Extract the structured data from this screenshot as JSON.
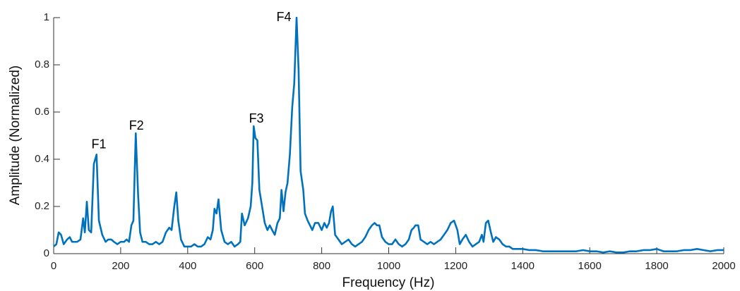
{
  "chart_data": {
    "type": "line",
    "xlabel": "Frequency (Hz)",
    "ylabel": "Amplitude (Normalized)",
    "x": [
      0,
      8,
      15,
      22,
      30,
      40,
      48,
      55,
      70,
      80,
      88,
      93,
      99,
      105,
      112,
      120,
      128,
      135,
      145,
      155,
      163,
      172,
      180,
      190,
      200,
      210,
      218,
      225,
      232,
      238,
      245,
      252,
      258,
      265,
      275,
      285,
      295,
      305,
      315,
      325,
      335,
      345,
      352,
      360,
      366,
      372,
      380,
      390,
      400,
      410,
      420,
      430,
      440,
      450,
      460,
      468,
      475,
      480,
      486,
      492,
      500,
      510,
      520,
      530,
      540,
      550,
      557,
      562,
      570,
      580,
      588,
      593,
      597,
      602,
      608,
      614,
      622,
      630,
      638,
      645,
      652,
      660,
      668,
      675,
      680,
      686,
      692,
      698,
      705,
      712,
      718,
      725,
      731,
      737,
      745,
      750,
      758,
      765,
      772,
      780,
      790,
      800,
      808,
      815,
      822,
      828,
      833,
      840,
      850,
      860,
      870,
      880,
      890,
      900,
      910,
      920,
      930,
      940,
      950,
      958,
      965,
      972,
      980,
      990,
      1000,
      1010,
      1020,
      1030,
      1040,
      1050,
      1060,
      1068,
      1075,
      1080,
      1088,
      1095,
      1105,
      1115,
      1125,
      1135,
      1145,
      1155,
      1165,
      1175,
      1185,
      1195,
      1205,
      1212,
      1220,
      1230,
      1240,
      1250,
      1260,
      1270,
      1278,
      1283,
      1290,
      1297,
      1305,
      1312,
      1320,
      1330,
      1340,
      1350,
      1360,
      1370,
      1380,
      1390,
      1400,
      1420,
      1440,
      1460,
      1480,
      1500,
      1520,
      1540,
      1560,
      1580,
      1600,
      1620,
      1640,
      1660,
      1680,
      1700,
      1720,
      1740,
      1760,
      1780,
      1800,
      1820,
      1840,
      1860,
      1880,
      1900,
      1920,
      1940,
      1960,
      1980,
      2000
    ],
    "values": [
      0.03,
      0.04,
      0.09,
      0.08,
      0.04,
      0.06,
      0.07,
      0.05,
      0.05,
      0.06,
      0.15,
      0.09,
      0.22,
      0.1,
      0.09,
      0.38,
      0.42,
      0.14,
      0.08,
      0.05,
      0.06,
      0.06,
      0.05,
      0.04,
      0.05,
      0.05,
      0.06,
      0.05,
      0.12,
      0.14,
      0.51,
      0.25,
      0.09,
      0.05,
      0.05,
      0.04,
      0.04,
      0.05,
      0.04,
      0.05,
      0.09,
      0.11,
      0.1,
      0.2,
      0.26,
      0.14,
      0.06,
      0.03,
      0.03,
      0.03,
      0.04,
      0.03,
      0.03,
      0.04,
      0.07,
      0.06,
      0.1,
      0.19,
      0.17,
      0.23,
      0.1,
      0.05,
      0.04,
      0.05,
      0.03,
      0.04,
      0.05,
      0.17,
      0.12,
      0.15,
      0.2,
      0.3,
      0.54,
      0.49,
      0.48,
      0.27,
      0.2,
      0.13,
      0.1,
      0.12,
      0.1,
      0.08,
      0.13,
      0.15,
      0.27,
      0.18,
      0.26,
      0.3,
      0.42,
      0.62,
      0.72,
      1.0,
      0.78,
      0.35,
      0.27,
      0.17,
      0.14,
      0.12,
      0.1,
      0.13,
      0.13,
      0.1,
      0.13,
      0.11,
      0.13,
      0.18,
      0.2,
      0.08,
      0.06,
      0.04,
      0.05,
      0.06,
      0.04,
      0.03,
      0.04,
      0.05,
      0.07,
      0.1,
      0.12,
      0.13,
      0.12,
      0.12,
      0.07,
      0.05,
      0.04,
      0.04,
      0.06,
      0.04,
      0.03,
      0.04,
      0.06,
      0.1,
      0.11,
      0.12,
      0.12,
      0.06,
      0.05,
      0.04,
      0.05,
      0.04,
      0.05,
      0.06,
      0.08,
      0.1,
      0.13,
      0.14,
      0.1,
      0.04,
      0.06,
      0.08,
      0.05,
      0.03,
      0.04,
      0.05,
      0.08,
      0.05,
      0.13,
      0.14,
      0.09,
      0.05,
      0.07,
      0.06,
      0.04,
      0.03,
      0.03,
      0.02,
      0.02,
      0.02,
      0.02,
      0.015,
      0.015,
      0.01,
      0.01,
      0.01,
      0.01,
      0.01,
      0.01,
      0.015,
      0.01,
      0.01,
      0.005,
      0.01,
      0.005,
      0.005,
      0.01,
      0.01,
      0.015,
      0.015,
      0.02,
      0.01,
      0.01,
      0.01,
      0.015,
      0.015,
      0.02,
      0.015,
      0.01,
      0.015,
      0.015
    ],
    "color": "#0072bd",
    "xlim": [
      0,
      2000
    ],
    "xticks": [
      0,
      200,
      400,
      600,
      800,
      1000,
      1200,
      1400,
      1600,
      1800,
      2000
    ],
    "ylim": [
      0,
      1
    ],
    "yticks": [
      0,
      0.2,
      0.4,
      0.6,
      0.8,
      1
    ],
    "annotations": [
      {
        "text": "F1",
        "x": 135,
        "y": 0.46
      },
      {
        "text": "F2",
        "x": 247,
        "y": 0.54
      },
      {
        "text": "F3",
        "x": 605,
        "y": 0.57
      },
      {
        "text": "F4",
        "x": 687,
        "y": 1.0
      }
    ]
  }
}
